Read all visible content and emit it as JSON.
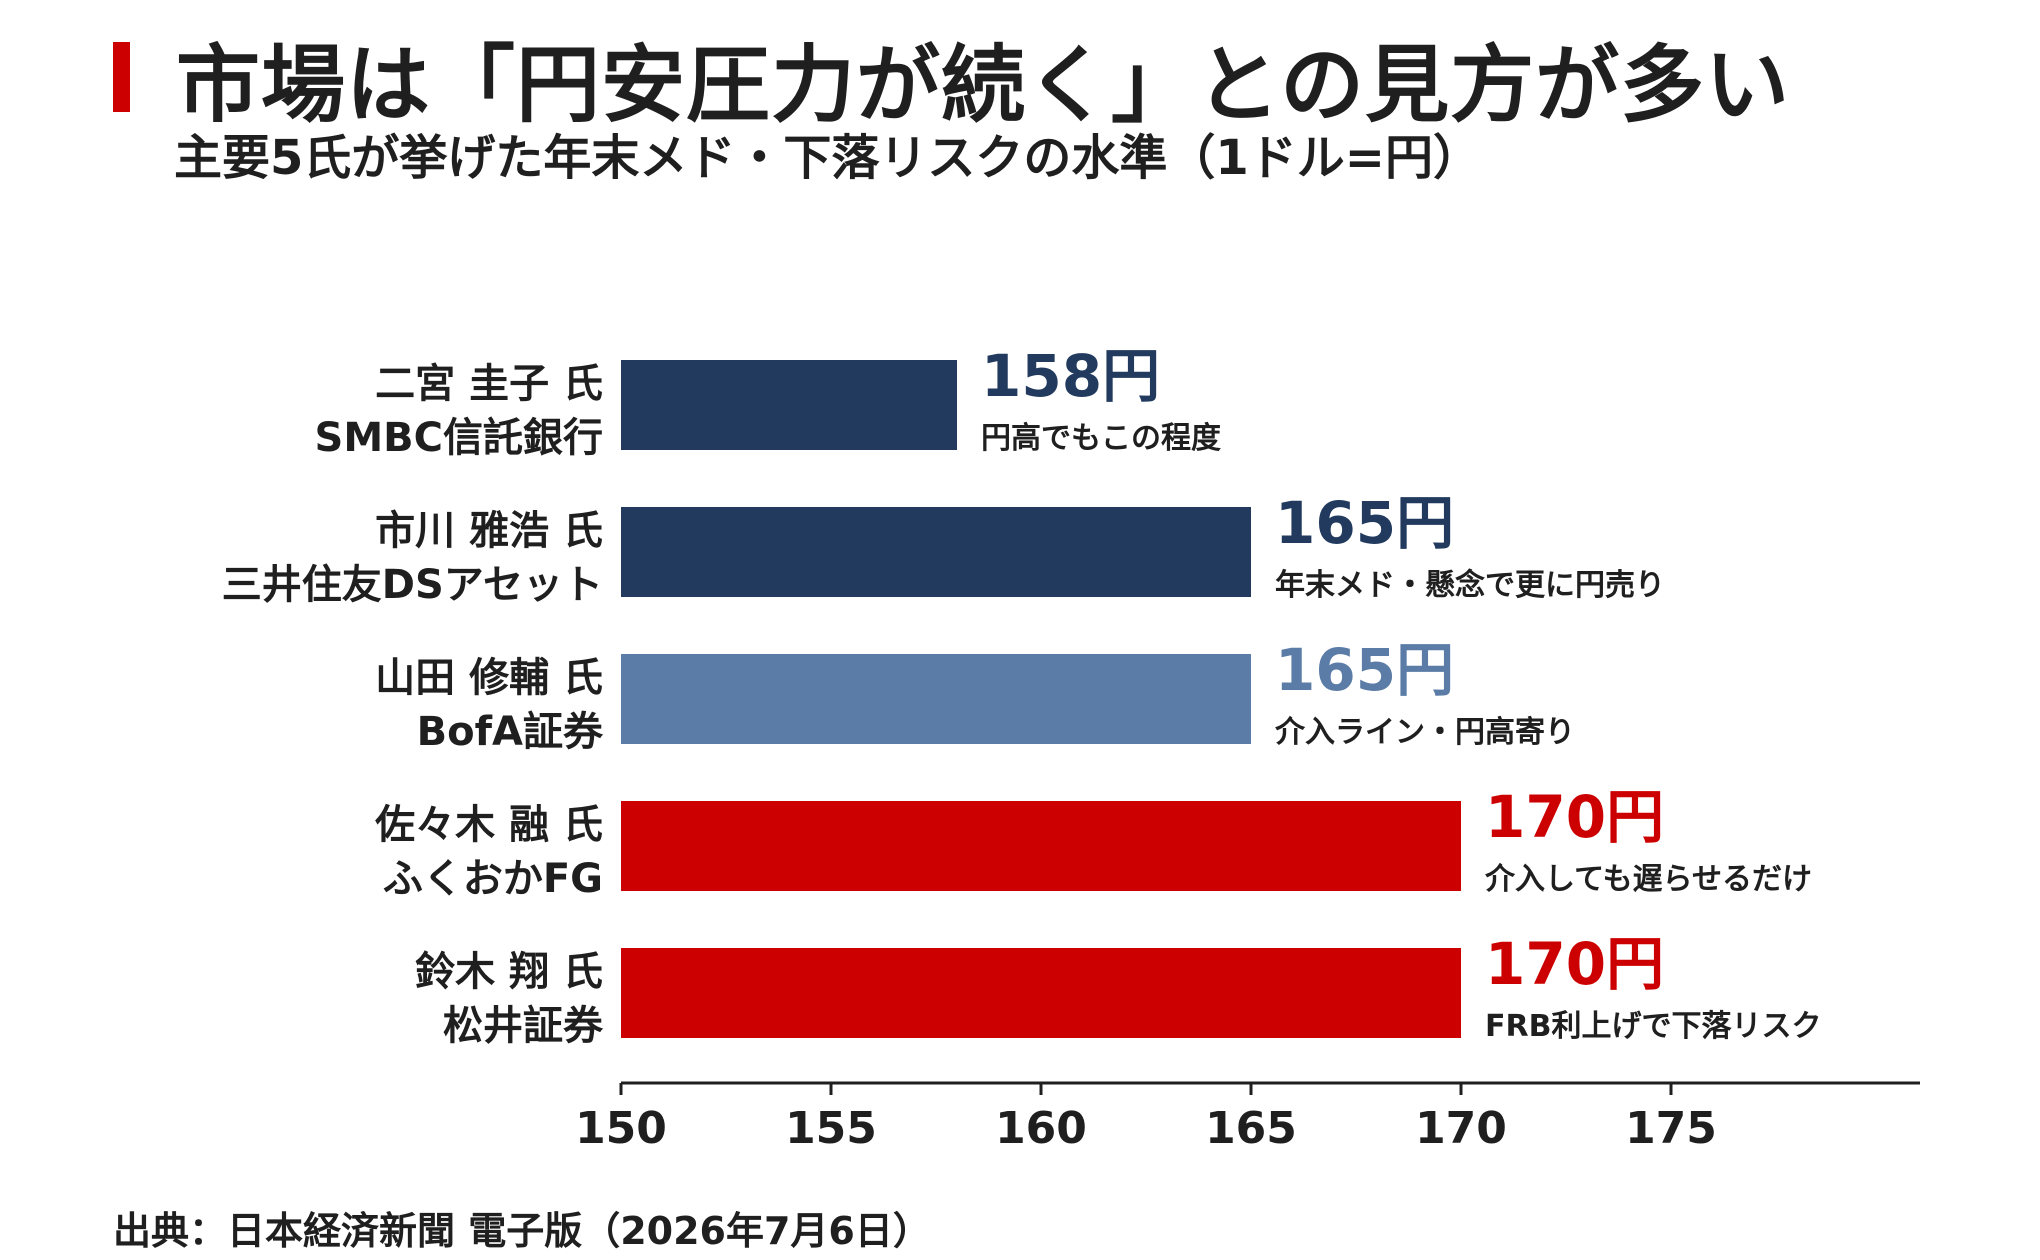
{
  "header": {
    "title": "市場は「円安圧力が続く」との見方が多い",
    "subtitle": "主要5氏が挙げた年末メド・下落リスクの水準（1ドル=円）"
  },
  "footer": {
    "source": "出典：日本経済新聞 電子版（2026年7月6日）"
  },
  "colors": {
    "navy": "#213a5e",
    "steel_blue": "#5b7ca6",
    "red": "#cc0000",
    "text": "#1f1f1f"
  },
  "chart_data": {
    "type": "bar",
    "orientation": "horizontal",
    "title": "市場は「円安圧力が続く」との見方が多い",
    "subtitle": "主要5氏が挙げた年末メド・下落リスクの水準（1ドル=円）",
    "xlim": [
      150,
      180
    ],
    "x_ticks": [
      "150",
      "155",
      "160",
      "165",
      "170",
      "175"
    ],
    "grid": false,
    "legend": "none",
    "bars": [
      {
        "name": "二宮 圭子 氏",
        "org": "SMBC信託銀行",
        "value": 158,
        "value_label": "158円",
        "note": "円高でもこの程度",
        "color": "#213a5e"
      },
      {
        "name": "市川 雅浩 氏",
        "org": "三井住友DSアセット",
        "value": 165,
        "value_label": "165円",
        "note": "年末メド・懸念で更に円売り",
        "color": "#213a5e"
      },
      {
        "name": "山田 修輔 氏",
        "org": "BofA証券",
        "value": 165,
        "value_label": "165円",
        "note": "介入ライン・円高寄り",
        "color": "#5b7ca6"
      },
      {
        "name": "佐々木 融 氏",
        "org": "ふくおかFG",
        "value": 170,
        "value_label": "170円",
        "note": "介入しても遅らせるだけ",
        "color": "#cc0000"
      },
      {
        "name": "鈴木 翔 氏",
        "org": "松井証券",
        "value": 170,
        "value_label": "170円",
        "note": "FRB利上げで下落リスク",
        "color": "#cc0000"
      }
    ]
  }
}
